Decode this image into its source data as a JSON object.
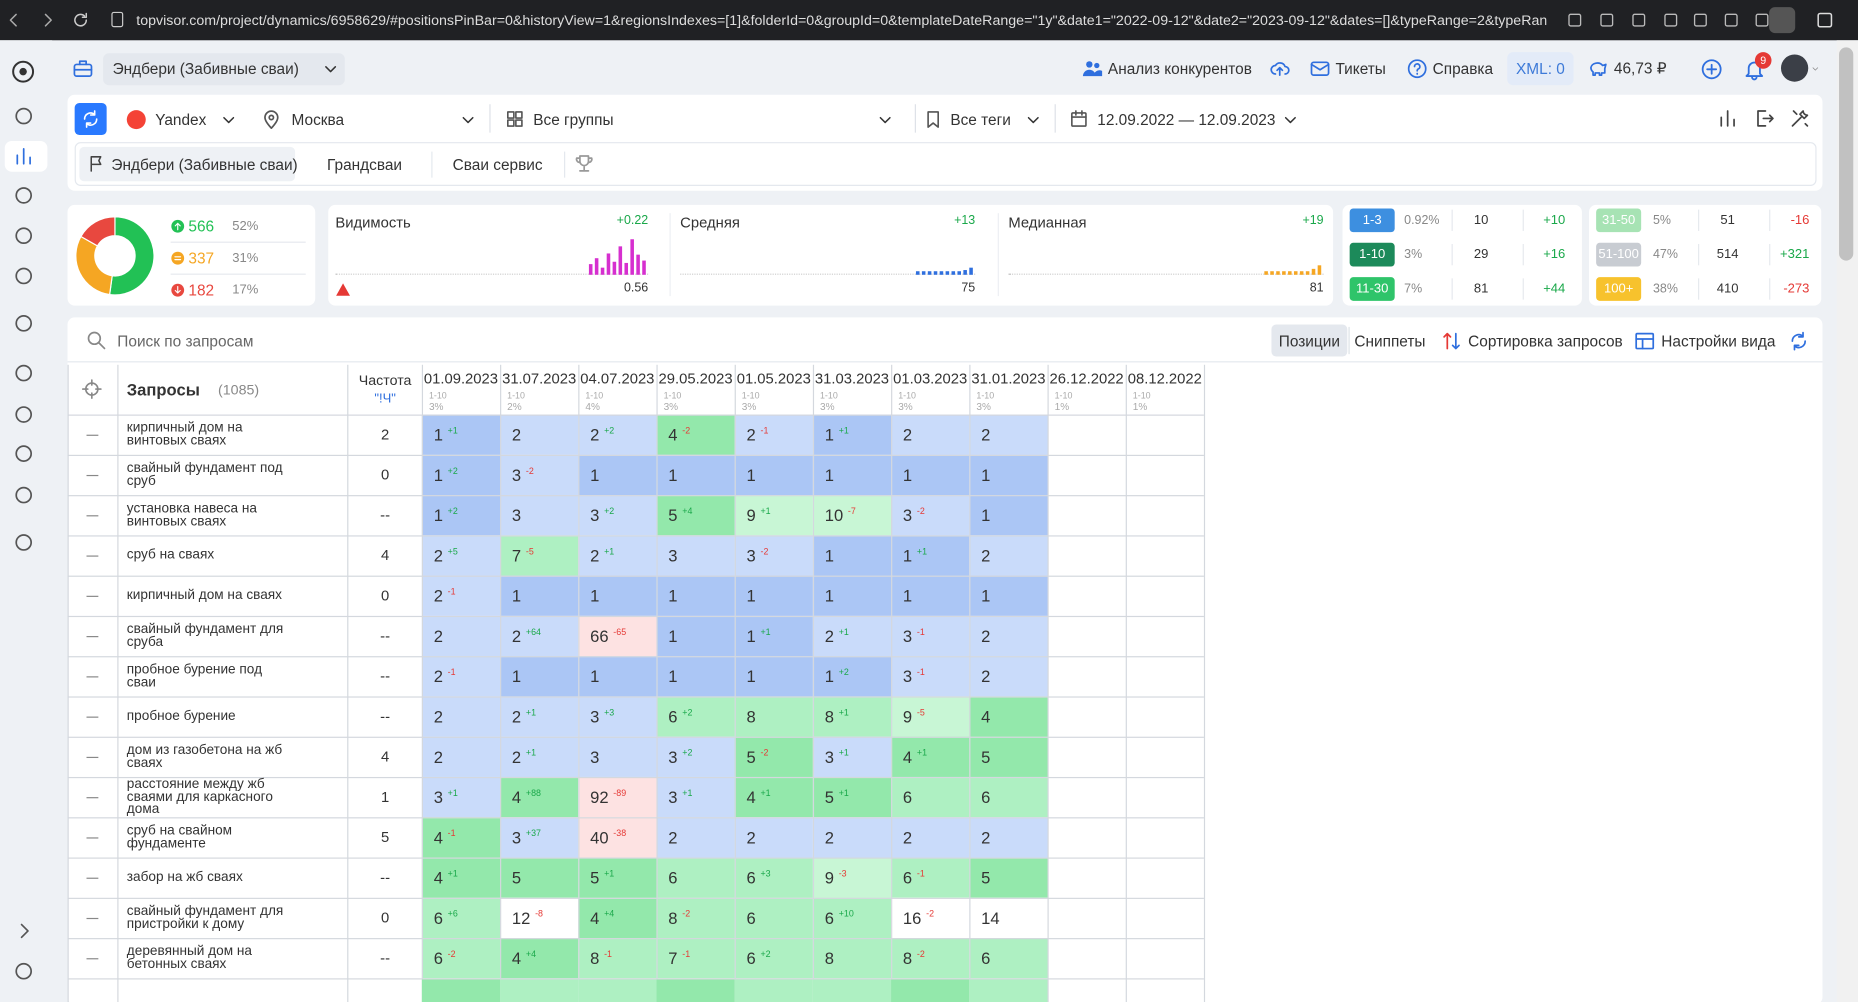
{
  "browser": {
    "url": "topvisor.com/project/dynamics/6958629/#positionsPinBar=0&historyView=1&regionsIndexes=[1]&folderId=0&groupId=0&templateDateRange=\"1y\"&date1=\"2022-09-12\"&date2=\"2023-09-12\"&dates=[]&typeRange=2&typeRangeCompare=7"
  },
  "header": {
    "project": "Эндбери (Забивные сваи)",
    "competitors_link": "Анализ конкурентов",
    "tickets": "Тикеты",
    "help": "Справка",
    "xml": "XML: 0",
    "balance": "46,73 ₽",
    "notifications": "9"
  },
  "filters": {
    "engine": "Yandex",
    "region": "Москва",
    "groups": "Все группы",
    "tags": "Все теги",
    "dates": "12.09.2022 — 12.09.2023",
    "projects": [
      "Эндбери (Забивные сваи)",
      "Грандсваи",
      "Сваи сервис"
    ]
  },
  "summary": {
    "items": [
      {
        "count": 566,
        "pct": "52%"
      },
      {
        "count": 337,
        "pct": "31%"
      },
      {
        "count": 182,
        "pct": "17%"
      }
    ]
  },
  "metrics": [
    {
      "label": "Видимость",
      "change": "+0.22",
      "value": 0.56
    },
    {
      "label": "Средняя",
      "change": "+13",
      "value": 75
    },
    {
      "label": "Медианная",
      "change": "+19",
      "value": 81
    }
  ],
  "ranges": [
    {
      "label": "1-3",
      "pct": "0.92%",
      "count": 10,
      "change": "+10"
    },
    {
      "label": "1-10",
      "pct": "3%",
      "count": 29,
      "change": "+16"
    },
    {
      "label": "11-30",
      "pct": "7%",
      "count": 81,
      "change": "+44"
    },
    {
      "label": "31-50",
      "pct": "5%",
      "count": 51,
      "change": "-16"
    },
    {
      "label": "51-100",
      "pct": "47%",
      "count": 514,
      "change": "+321"
    },
    {
      "label": "100+",
      "pct": "38%",
      "count": 410,
      "change": "-273"
    }
  ],
  "table": {
    "search": "Поиск по запросам",
    "tabs": [
      "Позиции",
      "Сниппеты"
    ],
    "sort": "Сортировка запросов",
    "view": "Настройки вида",
    "queries_label": "Запросы",
    "count": "(1085)",
    "freq_label": "Частота",
    "freq_type": "\"!Ч\"",
    "dates": [
      {
        "date": "01.09.2023",
        "range": "1-10",
        "pct": "3%"
      },
      {
        "date": "31.07.2023",
        "range": "1-10",
        "pct": "2%"
      },
      {
        "date": "04.07.2023",
        "range": "1-10",
        "pct": "4%"
      },
      {
        "date": "29.05.2023",
        "range": "1-10",
        "pct": "3%"
      },
      {
        "date": "01.05.2023",
        "range": "1-10",
        "pct": "3%"
      },
      {
        "date": "31.03.2023",
        "range": "1-10",
        "pct": "3%"
      },
      {
        "date": "01.03.2023",
        "range": "1-10",
        "pct": "3%"
      },
      {
        "date": "31.01.2023",
        "range": "1-10",
        "pct": "3%"
      },
      {
        "date": "26.12.2022",
        "range": "1-10",
        "pct": "1%"
      },
      {
        "date": "08.12.2022",
        "range": "1-10",
        "pct": "1%"
      }
    ],
    "rows": [
      {
        "query": "кирпичный дом на винтовых сваях",
        "freq": "2",
        "cells": [
          {
            "pos": 1,
            "delta": "+1"
          },
          {
            "pos": 2
          },
          {
            "pos": 2,
            "delta": "+2"
          },
          {
            "pos": 4,
            "delta": "-2"
          },
          {
            "pos": 2,
            "delta": "-1"
          },
          {
            "pos": 1,
            "delta": "+1"
          },
          {
            "pos": 2
          },
          {
            "pos": 2
          }
        ]
      },
      {
        "query": "свайный фундамент под сруб",
        "freq": "0",
        "cells": [
          {
            "pos": 1,
            "delta": "+2"
          },
          {
            "pos": 3,
            "delta": "-2"
          },
          {
            "pos": 1
          },
          {
            "pos": 1
          },
          {
            "pos": 1
          },
          {
            "pos": 1
          },
          {
            "pos": 1
          },
          {
            "pos": 1
          }
        ]
      },
      {
        "query": "установка навеса на винтовых сваях",
        "freq": "--",
        "cells": [
          {
            "pos": 1,
            "delta": "+2"
          },
          {
            "pos": 3
          },
          {
            "pos": 3,
            "delta": "+2"
          },
          {
            "pos": 5,
            "delta": "+4"
          },
          {
            "pos": 9,
            "delta": "+1"
          },
          {
            "pos": 10,
            "delta": "-7"
          },
          {
            "pos": 3,
            "delta": "-2"
          },
          {
            "pos": 1
          }
        ]
      },
      {
        "query": "сруб на сваях",
        "freq": "4",
        "cells": [
          {
            "pos": 2,
            "delta": "+5"
          },
          {
            "pos": 7,
            "delta": "-5"
          },
          {
            "pos": 2,
            "delta": "+1"
          },
          {
            "pos": 3
          },
          {
            "pos": 3,
            "delta": "-2"
          },
          {
            "pos": 1
          },
          {
            "pos": 1,
            "delta": "+1"
          },
          {
            "pos": 2
          }
        ]
      },
      {
        "query": "кирпичный дом на сваях",
        "freq": "0",
        "cells": [
          {
            "pos": 2,
            "delta": "-1"
          },
          {
            "pos": 1
          },
          {
            "pos": 1
          },
          {
            "pos": 1
          },
          {
            "pos": 1
          },
          {
            "pos": 1
          },
          {
            "pos": 1
          },
          {
            "pos": 1
          }
        ]
      },
      {
        "query": "свайный фундамент для сруба",
        "freq": "--",
        "cells": [
          {
            "pos": 2
          },
          {
            "pos": 2,
            "delta": "+64"
          },
          {
            "pos": 66,
            "delta": "-65"
          },
          {
            "pos": 1
          },
          {
            "pos": 1,
            "delta": "+1"
          },
          {
            "pos": 2,
            "delta": "+1"
          },
          {
            "pos": 3,
            "delta": "-1"
          },
          {
            "pos": 2
          }
        ]
      },
      {
        "query": "пробное бурение под сваи",
        "freq": "--",
        "cells": [
          {
            "pos": 2,
            "delta": "-1"
          },
          {
            "pos": 1
          },
          {
            "pos": 1
          },
          {
            "pos": 1
          },
          {
            "pos": 1
          },
          {
            "pos": 1,
            "delta": "+2"
          },
          {
            "pos": 3,
            "delta": "-1"
          },
          {
            "pos": 2
          }
        ]
      },
      {
        "query": "пробное бурение",
        "freq": "--",
        "cells": [
          {
            "pos": 2
          },
          {
            "pos": 2,
            "delta": "+1"
          },
          {
            "pos": 3,
            "delta": "+3"
          },
          {
            "pos": 6,
            "delta": "+2"
          },
          {
            "pos": 8
          },
          {
            "pos": 8,
            "delta": "+1"
          },
          {
            "pos": 9,
            "delta": "-5"
          },
          {
            "pos": 4
          }
        ]
      },
      {
        "query": "дом из газобетона на жб сваях",
        "freq": "4",
        "cells": [
          {
            "pos": 2
          },
          {
            "pos": 2,
            "delta": "+1"
          },
          {
            "pos": 3
          },
          {
            "pos": 3,
            "delta": "+2"
          },
          {
            "pos": 5,
            "delta": "-2"
          },
          {
            "pos": 3,
            "delta": "+1"
          },
          {
            "pos": 4,
            "delta": "+1"
          },
          {
            "pos": 5
          }
        ]
      },
      {
        "query": "расстояние между жб сваями для каркасного дома",
        "freq": "1",
        "cells": [
          {
            "pos": 3,
            "delta": "+1"
          },
          {
            "pos": 4,
            "delta": "+88"
          },
          {
            "pos": 92,
            "delta": "-89"
          },
          {
            "pos": 3,
            "delta": "+1"
          },
          {
            "pos": 4,
            "delta": "+1"
          },
          {
            "pos": 5,
            "delta": "+1"
          },
          {
            "pos": 6
          },
          {
            "pos": 6
          }
        ]
      },
      {
        "query": "сруб на свайном фундаменте",
        "freq": "5",
        "cells": [
          {
            "pos": 4,
            "delta": "-1"
          },
          {
            "pos": 3,
            "delta": "+37"
          },
          {
            "pos": 40,
            "delta": "-38"
          },
          {
            "pos": 2
          },
          {
            "pos": 2
          },
          {
            "pos": 2
          },
          {
            "pos": 2
          },
          {
            "pos": 2
          }
        ]
      },
      {
        "query": "забор на жб сваях",
        "freq": "--",
        "cells": [
          {
            "pos": 4,
            "delta": "+1"
          },
          {
            "pos": 5
          },
          {
            "pos": 5,
            "delta": "+1"
          },
          {
            "pos": 6
          },
          {
            "pos": 6,
            "delta": "+3"
          },
          {
            "pos": 9,
            "delta": "-3"
          },
          {
            "pos": 6,
            "delta": "-1"
          },
          {
            "pos": 5
          }
        ]
      },
      {
        "query": "свайный фундамент для пристройки к дому",
        "freq": "0",
        "cells": [
          {
            "pos": 6,
            "delta": "+6"
          },
          {
            "pos": 12,
            "delta": "-8"
          },
          {
            "pos": 4,
            "delta": "+4"
          },
          {
            "pos": 8,
            "delta": "-2"
          },
          {
            "pos": 6
          },
          {
            "pos": 6,
            "delta": "+10"
          },
          {
            "pos": 16,
            "delta": "-2"
          },
          {
            "pos": 14
          }
        ]
      },
      {
        "query": "деревянный дом на бетонных сваях",
        "freq": "--",
        "cells": [
          {
            "pos": 6,
            "delta": "-2"
          },
          {
            "pos": 4,
            "delta": "+4"
          },
          {
            "pos": 8,
            "delta": "-1"
          },
          {
            "pos": 7,
            "delta": "-1"
          },
          {
            "pos": 6,
            "delta": "+2"
          },
          {
            "pos": 8
          },
          {
            "pos": 8,
            "delta": "-2"
          },
          {
            "pos": 6
          }
        ]
      }
    ]
  }
}
